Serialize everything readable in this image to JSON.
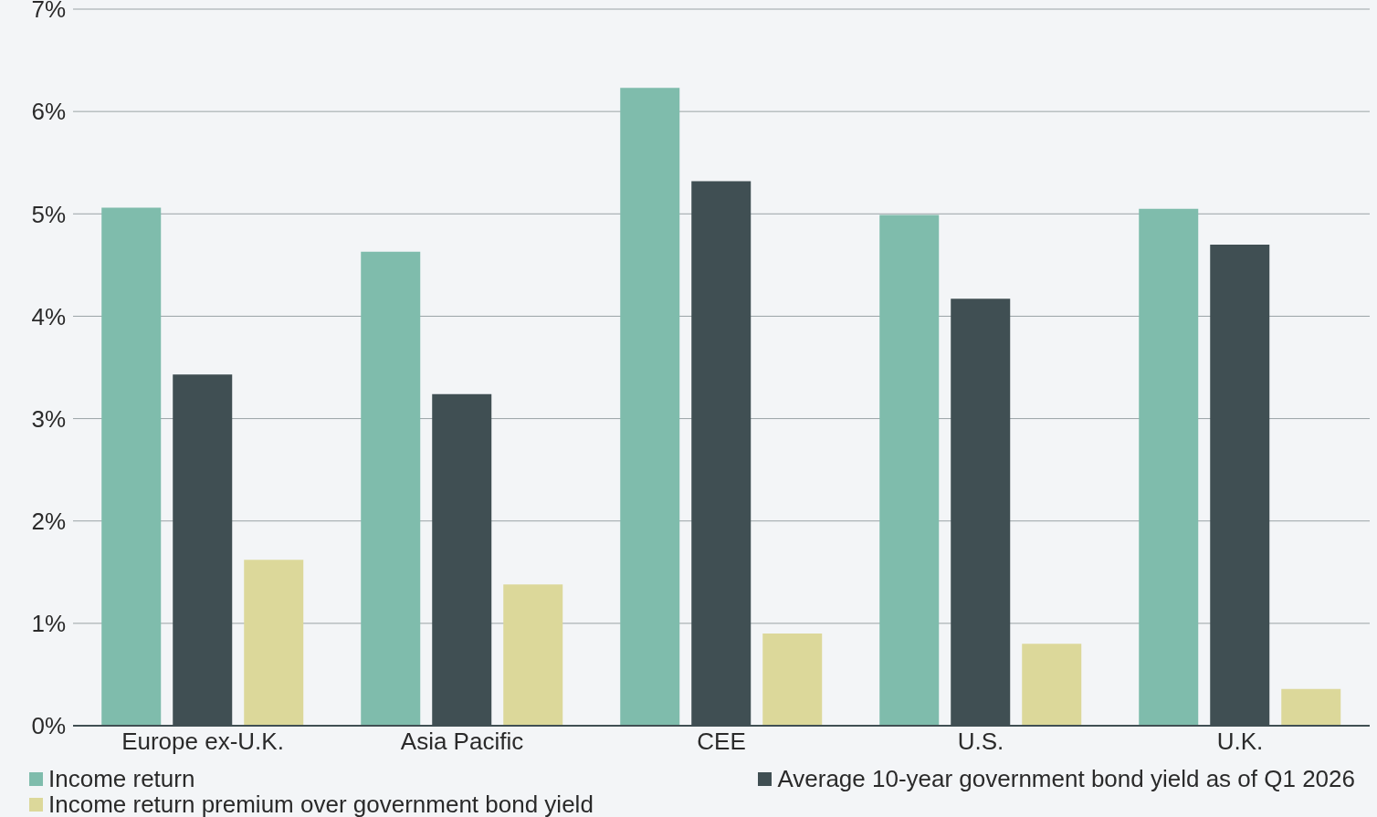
{
  "chart_data": {
    "type": "bar",
    "categories": [
      "Europe ex-U.K.",
      "Asia Pacific",
      "CEE",
      "U.S.",
      "U.K."
    ],
    "series": [
      {
        "name": "Income return",
        "color": "#7fbcac",
        "values": [
          5.06,
          4.63,
          6.23,
          4.99,
          5.05
        ]
      },
      {
        "name": "Average 10-year government bond yield as of Q1 2026",
        "color": "#404f53",
        "values": [
          3.43,
          3.24,
          5.32,
          4.17,
          4.7
        ]
      },
      {
        "name": "Income return premium over government bond yield",
        "color": "#dcd89a",
        "values": [
          1.62,
          1.38,
          0.9,
          0.8,
          0.36
        ]
      }
    ],
    "ylim": [
      0,
      7
    ],
    "yticks": [
      {
        "value": 0,
        "label": "0%"
      },
      {
        "value": 1,
        "label": "1%"
      },
      {
        "value": 2,
        "label": "2%"
      },
      {
        "value": 3,
        "label": "3%"
      },
      {
        "value": 4,
        "label": "4%"
      },
      {
        "value": 5,
        "label": "5%"
      },
      {
        "value": 6,
        "label": "6%"
      },
      {
        "value": 7,
        "label": "7%"
      }
    ],
    "grid": "y",
    "legend": "bottom"
  }
}
